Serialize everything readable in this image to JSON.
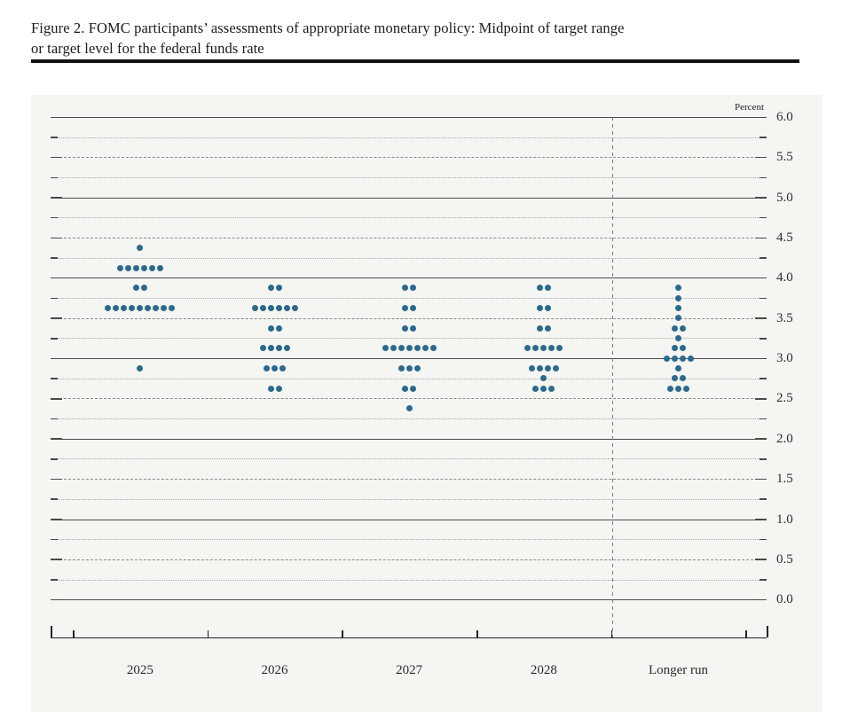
{
  "title": {
    "line1": "Figure 2. FOMC participants’ assessments of appropriate monetary policy: Midpoint of target range",
    "line2": "or target level for the federal funds rate"
  },
  "chart_data": {
    "type": "scatter",
    "subtype": "fomc-dot-plot",
    "title": "Figure 2. FOMC participants’ assessments of appropriate monetary policy: Midpoint of target range or target level for the federal funds rate",
    "unit_label": "Percent",
    "y_axis": {
      "min": 0.0,
      "max": 6.0,
      "label_step": 0.5,
      "grid_step": 0.25,
      "tick_labels": [
        "6.0",
        "5.5",
        "5.0",
        "4.5",
        "4.0",
        "3.5",
        "3.0",
        "2.5",
        "2.0",
        "1.5",
        "1.0",
        "0.5",
        "0.0"
      ]
    },
    "x_categories": [
      "2025",
      "2026",
      "2027",
      "2028",
      "Longer run"
    ],
    "series": [
      {
        "category": "2025",
        "dots": [
          {
            "rate": 4.375,
            "count": 1
          },
          {
            "rate": 4.125,
            "count": 6
          },
          {
            "rate": 3.875,
            "count": 2
          },
          {
            "rate": 3.625,
            "count": 9
          },
          {
            "rate": 2.875,
            "count": 1
          }
        ]
      },
      {
        "category": "2026",
        "dots": [
          {
            "rate": 3.875,
            "count": 2
          },
          {
            "rate": 3.625,
            "count": 6
          },
          {
            "rate": 3.375,
            "count": 2
          },
          {
            "rate": 3.125,
            "count": 4
          },
          {
            "rate": 2.875,
            "count": 3
          },
          {
            "rate": 2.625,
            "count": 2
          }
        ]
      },
      {
        "category": "2027",
        "dots": [
          {
            "rate": 3.875,
            "count": 2
          },
          {
            "rate": 3.625,
            "count": 2
          },
          {
            "rate": 3.375,
            "count": 2
          },
          {
            "rate": 3.125,
            "count": 7
          },
          {
            "rate": 2.875,
            "count": 3
          },
          {
            "rate": 2.625,
            "count": 2
          },
          {
            "rate": 2.375,
            "count": 1
          }
        ]
      },
      {
        "category": "2028",
        "dots": [
          {
            "rate": 3.875,
            "count": 2
          },
          {
            "rate": 3.625,
            "count": 2
          },
          {
            "rate": 3.375,
            "count": 2
          },
          {
            "rate": 3.125,
            "count": 5
          },
          {
            "rate": 2.875,
            "count": 4
          },
          {
            "rate": 2.75,
            "count": 1
          },
          {
            "rate": 2.625,
            "count": 3
          }
        ]
      },
      {
        "category": "Longer run",
        "dots": [
          {
            "rate": 3.875,
            "count": 1
          },
          {
            "rate": 3.75,
            "count": 1
          },
          {
            "rate": 3.625,
            "count": 1
          },
          {
            "rate": 3.5,
            "count": 1
          },
          {
            "rate": 3.375,
            "count": 2
          },
          {
            "rate": 3.25,
            "count": 1
          },
          {
            "rate": 3.125,
            "count": 2
          },
          {
            "rate": 3.0,
            "count": 4
          },
          {
            "rate": 2.875,
            "count": 1
          },
          {
            "rate": 2.75,
            "count": 2
          },
          {
            "rate": 2.625,
            "count": 3
          }
        ]
      }
    ],
    "colors": {
      "dot": "#2b6a8c",
      "grid_integer": "#4c4c4c",
      "grid_half": "#8a8a8a",
      "grid_quarter": "#a6a6a6"
    },
    "layout": {
      "grid": "horizontal dotted lines every 0.25 percent, darker at whole percents",
      "separator": "dashed vertical line between 2028 and Longer run",
      "legend": "none",
      "y_labels_position": "right"
    }
  }
}
